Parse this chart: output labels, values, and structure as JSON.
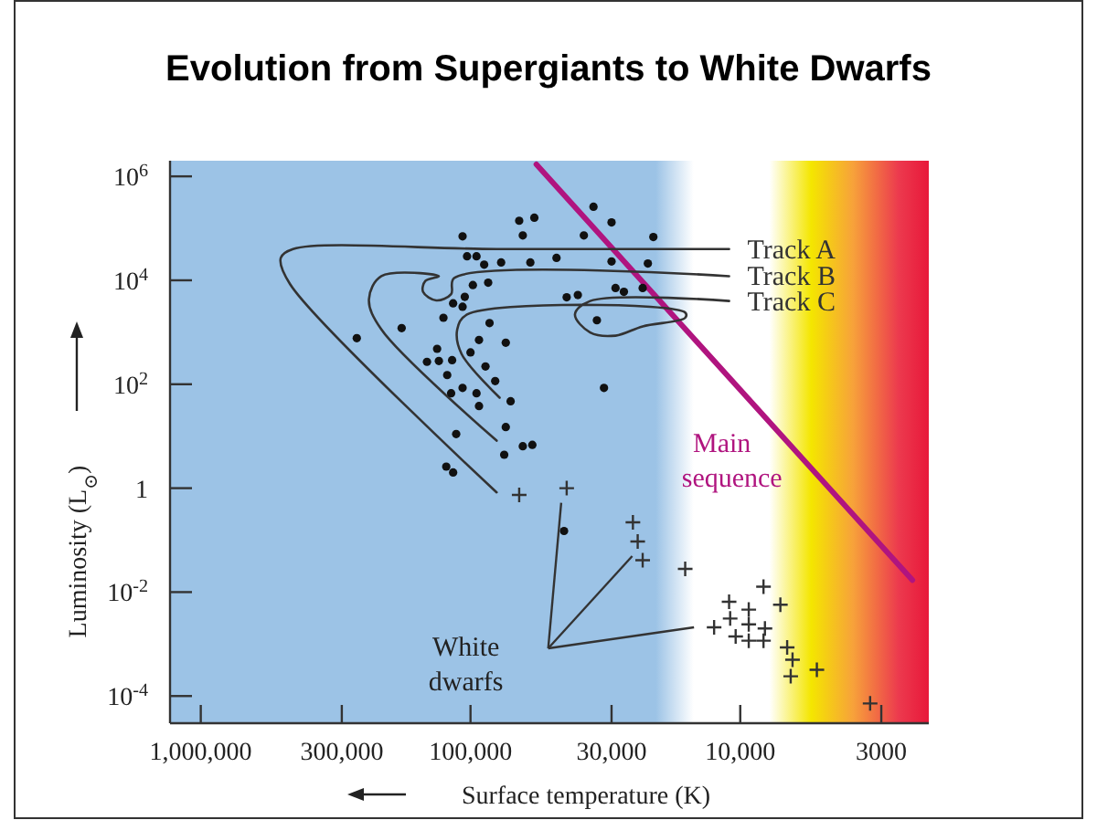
{
  "chart_data": {
    "type": "scatter",
    "title": "Evolution from Supergiants to White Dwarfs",
    "xlabel": "Surface temperature (K)",
    "ylabel": "Luminosity (L$_{⊙}$)",
    "log": "xy",
    "xlim": [
      1300000,
      2000
    ],
    "ylim": [
      3e-05,
      2000000
    ],
    "xticks": [
      {
        "value": 1000000,
        "label": "1,000,000"
      },
      {
        "value": 300000,
        "label": "300,000"
      },
      {
        "value": 100000,
        "label": "100,000"
      },
      {
        "value": 30000,
        "label": "30,000"
      },
      {
        "value": 10000,
        "label": "10,000"
      },
      3000
    ],
    "yticks": [
      {
        "value": 0.0001,
        "label": "10$^{-4}$"
      },
      {
        "value": 0.01,
        "label": "10$^{-2}$"
      },
      1,
      {
        "value": 100,
        "label": "10$^{2}$"
      },
      {
        "value": 10000,
        "label": "10$^{4}$"
      },
      {
        "value": 1000000,
        "label": "10$^{6}$"
      }
    ],
    "grid": false,
    "legend": false,
    "series": [
      {
        "type": "line",
        "name": "Main sequence",
        "color": "#b0147f",
        "line_style": "solid",
        "x": [
          57000,
          2300
        ],
        "values": [
          1700000,
          0.017
        ]
      },
      {
        "type": "line",
        "name": "Track A",
        "color": "#333333",
        "line_style": "solid",
        "x": [
          11000,
          80000,
          455000,
          505000,
          467000,
          80000
        ],
        "values": [
          40000,
          40000,
          40000,
          27000,
          8500,
          0.83
        ]
      },
      {
        "type": "line",
        "name": "Track B",
        "color": "#333333",
        "line_style": "solid",
        "x": [
          11000,
          115000,
          118000,
          134000,
          150000,
          147000,
          131000,
          214000,
          238000,
          214000,
          80000
        ],
        "values": [
          12000,
          11000,
          5400,
          4100,
          6000,
          9700,
          12000,
          12000,
          4300,
          1130,
          8.2
        ]
      },
      {
        "type": "line",
        "name": "Track C",
        "color": "#333333",
        "line_style": "solid",
        "x": [
          11000,
          36000,
          41000,
          36000,
          29000,
          23000,
          16000,
          16000,
          103000,
          112000,
          108000,
          78000
        ],
        "values": [
          4000,
          4000,
          2200,
          990,
          860,
          1300,
          1900,
          2400,
          2200,
          1130,
          385,
          55
        ]
      },
      {
        "marker": "circle",
        "color": "#111111",
        "x": [
          35000,
          30000,
          66000,
          58000,
          107000,
          64000,
          38000,
          21000,
          103000,
          95000,
          89000,
          77000,
          60000,
          48000,
          30000,
          22000,
          98000,
          86000,
          29000,
          27000,
          23000,
          44000,
          40000,
          105000,
          116000,
          107000,
          126000,
          34000,
          85000,
          180000,
          264000,
          93000,
          74000,
          133000,
          100000,
          145000,
          131000,
          117000,
          88000,
          122000,
          81000,
          107000,
          95000,
          118000,
          71000,
          93000,
          32000,
          74000,
          113000,
          64000,
          59000,
          75000,
          123000,
          116000,
          45000
        ],
        "values": [
          260000,
          130000,
          140000,
          160000,
          70000,
          73000,
          73000,
          68000,
          29000,
          29000,
          20000,
          22000,
          22000,
          27000,
          23000,
          21000,
          8100,
          9000,
          7100,
          6000,
          7100,
          4700,
          5200,
          4800,
          3600,
          3100,
          1900,
          1700,
          1500,
          1200,
          770,
          710,
          630,
          480,
          410,
          270,
          280,
          290,
          220,
          150,
          115,
          85,
          67,
          67,
          47,
          38,
          85,
          15,
          11,
          6.4,
          6.8,
          4.4,
          2.6,
          2.0,
          0.15
        ]
      },
      {
        "marker": "cross",
        "color": "#333333",
        "x": [
          66000,
          44000,
          25000,
          24000,
          23000,
          16000,
          8200,
          7100,
          11000,
          9300,
          10900,
          9300,
          8100,
          12500,
          10400,
          9300,
          8200,
          6700,
          6400,
          5200,
          6500,
          3300
        ],
        "values": [
          0.74,
          1.0,
          0.22,
          0.094,
          0.041,
          0.028,
          0.0127,
          0.0057,
          0.0065,
          0.0046,
          0.0031,
          0.0024,
          0.002,
          0.0021,
          0.0014,
          0.00116,
          0.00116,
          0.00086,
          0.0005,
          0.00032,
          0.00024,
          7.2e-05
        ]
      }
    ],
    "annotations": [
      "White dwarfs"
    ]
  }
}
